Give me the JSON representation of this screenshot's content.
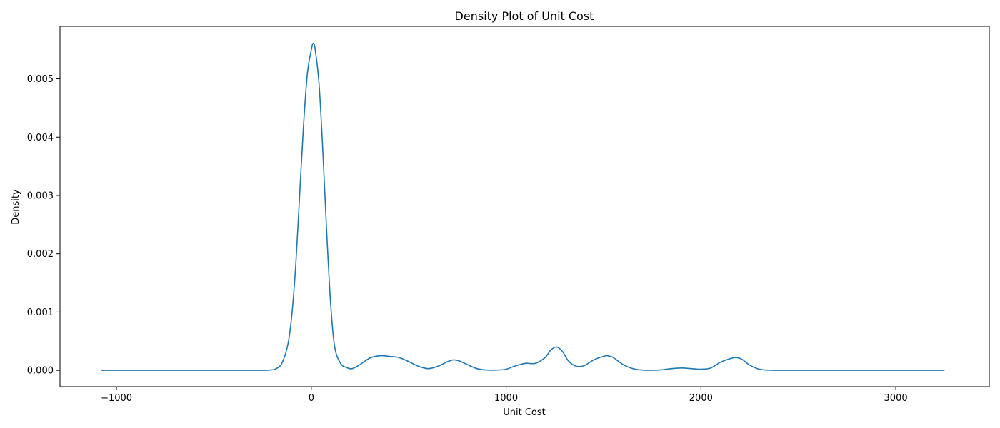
{
  "chart_data": {
    "type": "line",
    "title": "Density Plot of Unit Cost",
    "xlabel": "Unit Cost",
    "ylabel": "Density",
    "xlim": [
      -1290,
      3480
    ],
    "ylim": [
      -0.00028,
      0.0059
    ],
    "x_ticks": [
      -1000,
      0,
      1000,
      2000,
      3000
    ],
    "x_tick_labels": [
      "−1000",
      "0",
      "1000",
      "2000",
      "3000"
    ],
    "y_ticks": [
      0.0,
      0.001,
      0.002,
      0.003,
      0.004,
      0.005
    ],
    "y_tick_labels": [
      "0.000",
      "0.001",
      "0.002",
      "0.003",
      "0.004",
      "0.005"
    ],
    "grid": false,
    "colors": {
      "line": "#1f77b4",
      "axes": "#000000"
    },
    "series": [
      {
        "x": [
          -1080,
          -800,
          -500,
          -300,
          -220,
          -180,
          -150,
          -120,
          -100,
          -80,
          -60,
          -40,
          -20,
          0,
          10,
          20,
          40,
          60,
          80,
          100,
          120,
          150,
          180,
          210,
          250,
          300,
          350,
          400,
          450,
          500,
          550,
          600,
          650,
          700,
          730,
          760,
          800,
          850,
          900,
          950,
          1000,
          1050,
          1100,
          1150,
          1200,
          1230,
          1260,
          1290,
          1320,
          1360,
          1400,
          1450,
          1500,
          1520,
          1550,
          1600,
          1650,
          1700,
          1750,
          1800,
          1850,
          1900,
          1950,
          2000,
          2050,
          2100,
          2150,
          2180,
          2210,
          2250,
          2300,
          2350,
          2400,
          2500,
          2800,
          3100,
          3250
        ],
        "y": [
          0,
          0,
          0,
          1e-06,
          3e-06,
          3e-05,
          0.00013,
          0.00045,
          0.00095,
          0.0018,
          0.003,
          0.0042,
          0.0051,
          0.0055,
          0.00561,
          0.0055,
          0.0049,
          0.0037,
          0.0023,
          0.0011,
          0.0004,
          0.00012,
          5e-05,
          3e-05,
          0.0001,
          0.00021,
          0.00025,
          0.00024,
          0.00022,
          0.00015,
          7e-05,
          3e-05,
          7e-05,
          0.00015,
          0.00018,
          0.00016,
          0.0001,
          3e-05,
          5e-06,
          5e-06,
          2e-05,
          8e-05,
          0.00012,
          0.00012,
          0.00022,
          0.00035,
          0.0004,
          0.00032,
          0.00016,
          7e-05,
          8e-05,
          0.00018,
          0.00024,
          0.00025,
          0.00022,
          0.0001,
          3e-05,
          5e-06,
          2e-06,
          1e-05,
          3e-05,
          4e-05,
          3e-05,
          2e-05,
          4e-05,
          0.00014,
          0.0002,
          0.00022,
          0.00019,
          9e-05,
          2e-05,
          3e-06,
          0,
          0,
          0,
          0,
          0
        ]
      }
    ]
  }
}
